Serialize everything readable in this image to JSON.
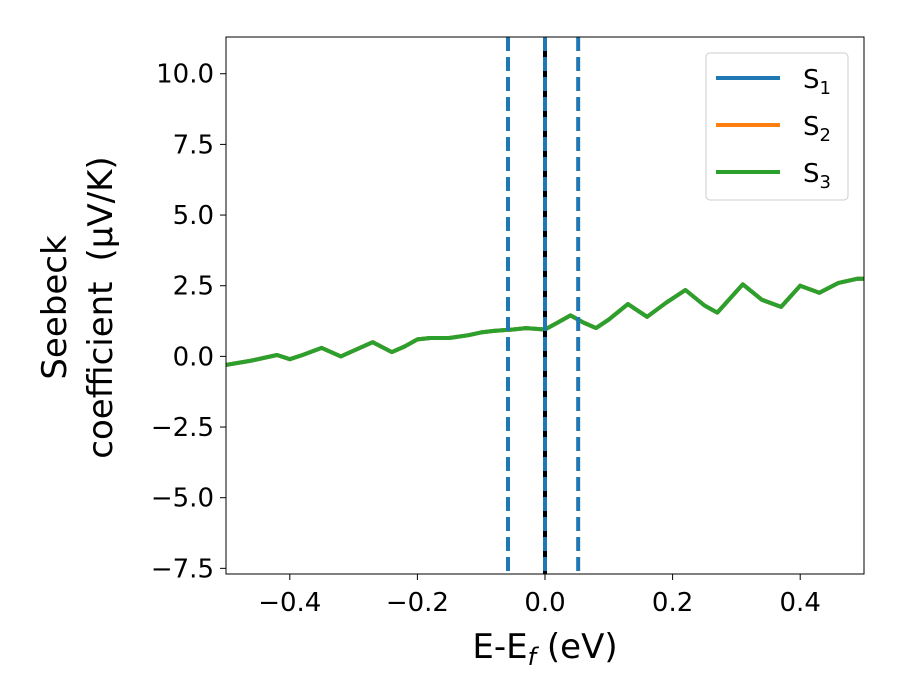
{
  "chart_data": {
    "type": "line",
    "xlabel": "E-E$_f$ (eV)",
    "xlabel_parts": {
      "main": "E-E",
      "sub": "f",
      "tail": " (eV)"
    },
    "ylabel_line1": "Seebeck",
    "ylabel_line2": "coefficient",
    "ylabel_unit": "(μV/K)",
    "xlim": [
      -0.5,
      0.5
    ],
    "ylim": [
      -7.7,
      11.3
    ],
    "xticks": [
      -0.4,
      -0.2,
      0.0,
      0.2,
      0.4
    ],
    "xtick_labels": [
      "−0.4",
      "−0.2",
      "0.0",
      "0.2",
      "0.4"
    ],
    "yticks": [
      -7.5,
      -5.0,
      -2.5,
      0.0,
      2.5,
      5.0,
      7.5,
      10.0
    ],
    "ytick_labels": [
      "−7.5",
      "−5.0",
      "−2.5",
      "0.0",
      "2.5",
      "5.0",
      "7.5",
      "10.0"
    ],
    "legend_position": "top-right",
    "series": [
      {
        "name": "S1",
        "label_main": "S",
        "label_sub": "1",
        "color": "#1f77b4",
        "x": [
          -0.5,
          -0.46,
          -0.42,
          -0.4,
          -0.38,
          -0.35,
          -0.32,
          -0.3,
          -0.27,
          -0.24,
          -0.22,
          -0.2,
          -0.18,
          -0.15,
          -0.12,
          -0.1,
          -0.08,
          -0.05,
          -0.03,
          0.0,
          0.02,
          0.04,
          0.06,
          0.08,
          0.1,
          0.13,
          0.16,
          0.19,
          0.22,
          0.25,
          0.27,
          0.31,
          0.34,
          0.37,
          0.4,
          0.43,
          0.46,
          0.49,
          0.5
        ],
        "y": [
          -0.3,
          -0.15,
          0.05,
          -0.1,
          0.05,
          0.3,
          0.0,
          0.2,
          0.5,
          0.15,
          0.35,
          0.6,
          0.65,
          0.65,
          0.75,
          0.85,
          0.9,
          0.95,
          1.0,
          0.95,
          1.2,
          1.45,
          1.2,
          1.0,
          1.3,
          1.85,
          1.4,
          1.9,
          2.35,
          1.8,
          1.55,
          2.55,
          2.0,
          1.75,
          2.5,
          2.25,
          2.6,
          2.75,
          2.75
        ]
      },
      {
        "name": "S2",
        "label_main": "S",
        "label_sub": "2",
        "color": "#ff7f0e",
        "x": [
          -0.5,
          -0.46,
          -0.42,
          -0.4,
          -0.38,
          -0.35,
          -0.32,
          -0.3,
          -0.27,
          -0.24,
          -0.22,
          -0.2,
          -0.18,
          -0.15,
          -0.12,
          -0.1,
          -0.08,
          -0.05,
          -0.03,
          0.0,
          0.02,
          0.04,
          0.06,
          0.08,
          0.1,
          0.13,
          0.16,
          0.19,
          0.22,
          0.25,
          0.27,
          0.31,
          0.34,
          0.37,
          0.4,
          0.43,
          0.46,
          0.49,
          0.5
        ],
        "y": [
          -0.3,
          -0.15,
          0.05,
          -0.1,
          0.05,
          0.3,
          0.0,
          0.2,
          0.5,
          0.15,
          0.35,
          0.6,
          0.65,
          0.65,
          0.75,
          0.85,
          0.9,
          0.95,
          1.0,
          0.95,
          1.2,
          1.45,
          1.2,
          1.0,
          1.3,
          1.85,
          1.4,
          1.9,
          2.35,
          1.8,
          1.55,
          2.55,
          2.0,
          1.75,
          2.5,
          2.25,
          2.6,
          2.75,
          2.75
        ]
      },
      {
        "name": "S3",
        "label_main": "S",
        "label_sub": "3",
        "color": "#2ca02c",
        "x": [
          -0.5,
          -0.46,
          -0.42,
          -0.4,
          -0.38,
          -0.35,
          -0.32,
          -0.3,
          -0.27,
          -0.24,
          -0.22,
          -0.2,
          -0.18,
          -0.15,
          -0.12,
          -0.1,
          -0.08,
          -0.05,
          -0.03,
          0.0,
          0.02,
          0.04,
          0.06,
          0.08,
          0.1,
          0.13,
          0.16,
          0.19,
          0.22,
          0.25,
          0.27,
          0.31,
          0.34,
          0.37,
          0.4,
          0.43,
          0.46,
          0.49,
          0.5
        ],
        "y": [
          -0.3,
          -0.15,
          0.05,
          -0.1,
          0.05,
          0.3,
          0.0,
          0.2,
          0.5,
          0.15,
          0.35,
          0.6,
          0.65,
          0.65,
          0.75,
          0.85,
          0.9,
          0.95,
          1.0,
          0.95,
          1.2,
          1.45,
          1.2,
          1.0,
          1.3,
          1.85,
          1.4,
          1.9,
          2.35,
          1.8,
          1.55,
          2.55,
          2.0,
          1.75,
          2.5,
          2.25,
          2.6,
          2.75,
          2.75
        ]
      }
    ],
    "vlines": [
      {
        "x": -0.058,
        "style": "dashed",
        "color": "#1f77b4"
      },
      {
        "x": 0.0,
        "style": "solid",
        "color": "#000000"
      },
      {
        "x": 0.0,
        "style": "dashed",
        "color": "#1f77b4"
      },
      {
        "x": 0.052,
        "style": "dashed",
        "color": "#1f77b4"
      }
    ]
  }
}
